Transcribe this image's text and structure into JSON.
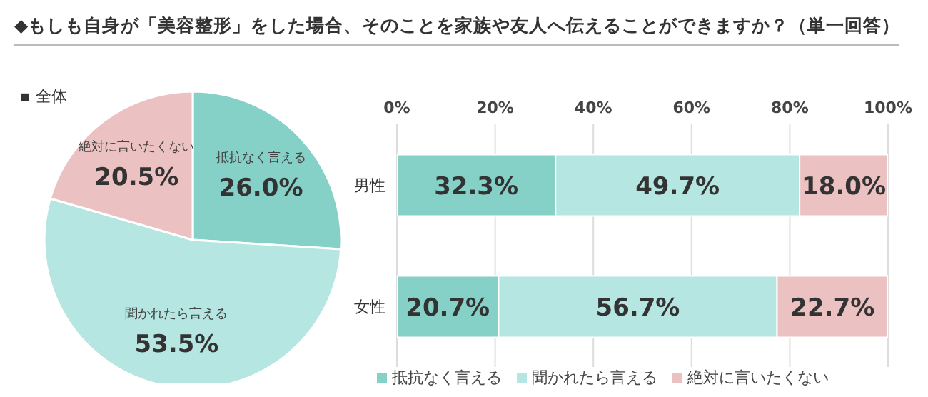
{
  "chart_data": [
    {
      "type": "pie",
      "title": "◆もしも自身が「美容整形」をした場合、そのことを家族や友人へ伝えることができますか？（単一回答）",
      "subtitle": "▪ 全体",
      "categories": [
        "抵抗なく言える",
        "聞かれたら言える",
        "絶対に言いたくない"
      ],
      "values": [
        26.0,
        53.5,
        20.5
      ],
      "value_labels": [
        "26.0%",
        "53.5%",
        "20.5%"
      ],
      "colors": [
        "#86d1c7",
        "#b5e6e1",
        "#ecc1c1"
      ],
      "legend": false
    },
    {
      "type": "bar",
      "orientation": "horizontal",
      "stacked": true,
      "categories": [
        "男性",
        "女性"
      ],
      "series": [
        {
          "name": "抵抗なく言える",
          "color": "#86d1c7",
          "values": [
            32.3,
            20.7
          ],
          "value_labels": [
            "32.3%",
            "20.7%"
          ]
        },
        {
          "name": "聞かれたら言える",
          "color": "#b5e6e1",
          "values": [
            49.7,
            56.7
          ],
          "value_labels": [
            "49.7%",
            "56.7%"
          ]
        },
        {
          "name": "絶対に言いたくない",
          "color": "#ecc1c1",
          "values": [
            18.0,
            22.7
          ],
          "value_labels": [
            "18.0%",
            "22.7%"
          ]
        }
      ],
      "xlim": [
        0,
        100
      ],
      "xticks": [
        {
          "value": 0,
          "label": "0%"
        },
        {
          "value": 20,
          "label": "20%"
        },
        {
          "value": 40,
          "label": "40%"
        },
        {
          "value": 60,
          "label": "60%"
        },
        {
          "value": 80,
          "label": "80%"
        },
        {
          "value": 100,
          "label": "100%"
        }
      ],
      "grid": "x",
      "legend": "bottom"
    }
  ]
}
